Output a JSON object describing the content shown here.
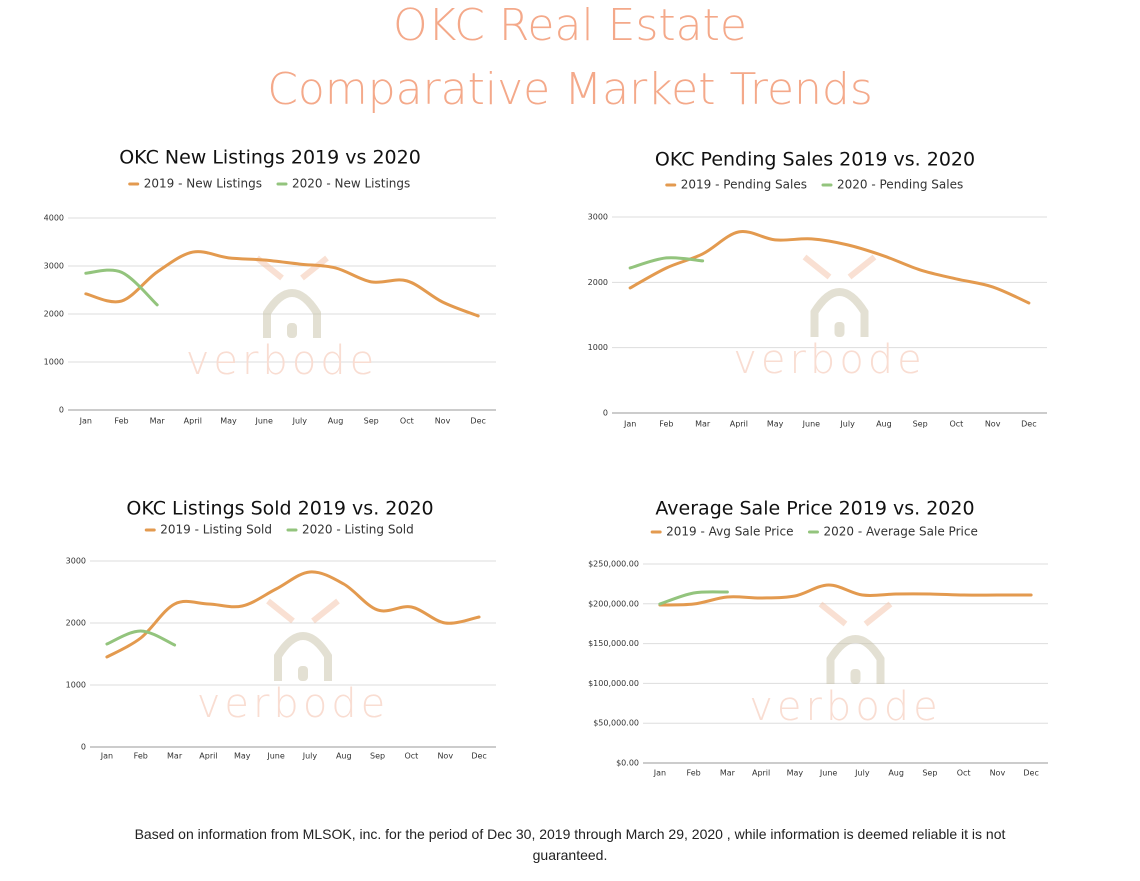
{
  "title": [
    "OKC Real Estate",
    "Comparative Market Trends"
  ],
  "watermark": "verbode",
  "footnote": "Based on information from MLSOK, inc. for the period of Dec 30, 2019 through March 29, 2020 , while information is deemed reliable it is not guaranteed.",
  "chart_data": [
    {
      "type": "line",
      "title": "OKC New Listings 2019 vs 2020",
      "categories": [
        "Jan",
        "Feb",
        "Mar",
        "April",
        "May",
        "June",
        "July",
        "Aug",
        "Sep",
        "Oct",
        "Nov",
        "Dec"
      ],
      "series": [
        {
          "name": "2019 - New Listings",
          "color": "#e39a4f",
          "values": [
            2420,
            2270,
            2875,
            3290,
            3170,
            3125,
            3040,
            2960,
            2670,
            2690,
            2250,
            1960
          ]
        },
        {
          "name": "2020 - New Listings",
          "color": "#93c47d",
          "values": [
            2850,
            2870,
            2190,
            null,
            null,
            null,
            null,
            null,
            null,
            null,
            null,
            null
          ]
        }
      ],
      "ylim": [
        0,
        4000
      ],
      "yticks": [
        0,
        1000,
        2000,
        3000,
        4000
      ],
      "grid": true
    },
    {
      "type": "line",
      "title": "OKC Pending Sales 2019 vs. 2020",
      "categories": [
        "Jan",
        "Feb",
        "Mar",
        "April",
        "May",
        "June",
        "July",
        "Aug",
        "Sep",
        "Oct",
        "Nov",
        "Dec"
      ],
      "series": [
        {
          "name": "2019 - Pending Sales",
          "color": "#e39a4f",
          "values": [
            1914,
            2220,
            2435,
            2772,
            2650,
            2665,
            2573,
            2404,
            2190,
            2052,
            1930,
            1684
          ]
        },
        {
          "name": "2020 - Pending Sales",
          "color": "#93c47d",
          "values": [
            2220,
            2374,
            2328,
            null,
            null,
            null,
            null,
            null,
            null,
            null,
            null,
            null
          ]
        }
      ],
      "ylim": [
        0,
        3000
      ],
      "yticks": [
        0,
        1000,
        2000,
        3000
      ],
      "grid": true
    },
    {
      "type": "line",
      "title": "OKC Listings Sold 2019 vs. 2020",
      "categories": [
        "Jan",
        "Feb",
        "Mar",
        "April",
        "May",
        "June",
        "July",
        "Aug",
        "Sep",
        "Oct",
        "Nov",
        "Dec"
      ],
      "series": [
        {
          "name": "2019 - Listing Sold",
          "color": "#e39a4f",
          "values": [
            1452,
            1758,
            2306,
            2306,
            2274,
            2548,
            2823,
            2629,
            2210,
            2258,
            2000,
            2097
          ]
        },
        {
          "name": "2020 - Listing Sold",
          "color": "#93c47d",
          "values": [
            1661,
            1871,
            1645,
            null,
            null,
            null,
            null,
            null,
            null,
            null,
            null,
            null
          ]
        }
      ],
      "ylim": [
        0,
        3000
      ],
      "yticks": [
        0,
        1000,
        2000,
        3000
      ],
      "grid": true
    },
    {
      "type": "line",
      "title": "Average Sale Price 2019 vs. 2020",
      "categories": [
        "Jan",
        "Feb",
        "Mar",
        "April",
        "May",
        "June",
        "July",
        "Aug",
        "Sep",
        "Oct",
        "Nov",
        "Dec"
      ],
      "series": [
        {
          "name": "2019 - Avg Sale Price",
          "color": "#e39a4f",
          "values": [
            198500,
            199700,
            208500,
            207300,
            209800,
            223600,
            211000,
            212300,
            212300,
            211000,
            211000,
            211000
          ]
        },
        {
          "name": "2020 - Average Sale Price",
          "color": "#93c47d",
          "values": [
            199700,
            213600,
            214800,
            null,
            null,
            null,
            null,
            null,
            null,
            null,
            null,
            null
          ]
        }
      ],
      "ylim": [
        0,
        250000
      ],
      "yticks": [
        {
          "value": 0,
          "label": "$0.00"
        },
        {
          "value": 50000,
          "label": "$50,000.00"
        },
        {
          "value": 100000,
          "label": "$100,000.00"
        },
        {
          "value": 150000,
          "label": "$150,000.00"
        },
        {
          "value": 200000,
          "label": "$200,000.00"
        },
        {
          "value": 250000,
          "label": "$250,000.00"
        }
      ],
      "grid": true
    }
  ]
}
